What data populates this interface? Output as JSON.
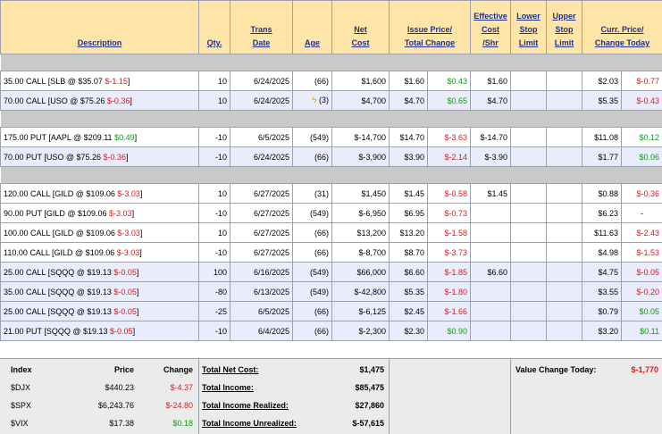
{
  "headers": {
    "description": "Description",
    "qty": "Qty.",
    "trans_date_1": "Trans",
    "trans_date_2": "Date",
    "age": "Age",
    "net_cost_1": "Net",
    "net_cost_2": "Cost",
    "issue_1": "Issue Price/",
    "issue_2": "Total Change",
    "eff_1": "Effective",
    "eff_2": "Cost",
    "eff_3": "/Shr",
    "lower_1": "Lower",
    "lower_2": "Stop",
    "lower_3": "Limit",
    "upper_1": "Upper",
    "upper_2": "Stop",
    "upper_3": "Limit",
    "curr_1": "Curr. Price/",
    "curr_2": "Change Today"
  },
  "rows": [
    {
      "desc": "35.00 CALL [SLB @ $35.07 ",
      "desc_chg": "$-1.15",
      "desc_tail": "]",
      "qty": "10",
      "date": "6/24/2025",
      "age": "(66)",
      "net": "$1,600",
      "issue": "$1.60",
      "total": "$0.43",
      "total_color": "grn",
      "eff": "$1.60",
      "curr": "$2.03",
      "chg": "$-0.77",
      "chg_color": "red"
    },
    {
      "desc": "70.00 CALL [USO @ $75.26 ",
      "desc_chg": "$-0.36",
      "desc_tail": "]",
      "qty": "10",
      "date": "6/24/2025",
      "age": "(3)",
      "flame": "ϟ",
      "net": "$4,700",
      "issue": "$4.70",
      "total": "$0.65",
      "total_color": "grn",
      "eff": "$4.70",
      "curr": "$5.35",
      "chg": "$-0.43",
      "chg_color": "red"
    },
    {
      "desc": "175.00 PUT [AAPL @ $209.11 ",
      "desc_chg": "$0.49",
      "desc_tail": "]",
      "desc_color": "grn",
      "qty": "-10",
      "date": "6/5/2025",
      "age": "(549)",
      "net": "$-14,700",
      "issue": "$14.70",
      "total": "$-3.63",
      "total_color": "red",
      "eff": "$-14.70",
      "curr": "$11.08",
      "chg": "$0.12",
      "chg_color": "grn"
    },
    {
      "desc": "70.00 PUT [USO @ $75.26 ",
      "desc_chg": "$-0.36",
      "desc_tail": "]",
      "qty": "-10",
      "date": "6/24/2025",
      "age": "(66)",
      "net": "$-3,900",
      "issue": "$3.90",
      "total": "$-2.14",
      "total_color": "red",
      "eff": "$-3.90",
      "curr": "$1.77",
      "chg": "$0.06",
      "chg_color": "grn"
    },
    {
      "desc": "120.00 CALL [GILD @ $109.06 ",
      "desc_chg": "$-3.03",
      "desc_tail": "]",
      "qty": "10",
      "date": "6/27/2025",
      "age": "(31)",
      "net": "$1,450",
      "issue": "$1.45",
      "total": "$-0.58",
      "total_color": "red",
      "eff": "$1.45",
      "curr": "$0.88",
      "chg": "$-0.36",
      "chg_color": "red"
    },
    {
      "desc": "90.00 PUT [GILD @ $109.06 ",
      "desc_chg": "$-3.03",
      "desc_tail": "]",
      "qty": "-10",
      "date": "6/27/2025",
      "age": "(549)",
      "net": "$-6,950",
      "issue": "$6.95",
      "total": "$-0.73",
      "total_color": "red",
      "eff": "",
      "curr": "$6.23",
      "chg": "-",
      "chg_color": ""
    },
    {
      "desc": "100.00 CALL [GILD @ $109.06 ",
      "desc_chg": "$-3.03",
      "desc_tail": "]",
      "qty": "10",
      "date": "6/27/2025",
      "age": "(66)",
      "net": "$13,200",
      "issue": "$13.20",
      "total": "$-1.58",
      "total_color": "red",
      "eff": "",
      "curr": "$11.63",
      "chg": "$-2.43",
      "chg_color": "red"
    },
    {
      "desc": "110.00 CALL [GILD @ $109.06 ",
      "desc_chg": "$-3.03",
      "desc_tail": "]",
      "qty": "-10",
      "date": "6/27/2025",
      "age": "(66)",
      "net": "$-8,700",
      "issue": "$8.70",
      "total": "$-3.73",
      "total_color": "red",
      "eff": "",
      "curr": "$4.98",
      "chg": "$-1.53",
      "chg_color": "red"
    },
    {
      "desc": "25.00 CALL [SQQQ @ $19.13 ",
      "desc_chg": "$-0.05",
      "desc_tail": "]",
      "qty": "100",
      "date": "6/16/2025",
      "age": "(549)",
      "net": "$66,000",
      "issue": "$6.60",
      "total": "$-1.85",
      "total_color": "red",
      "eff": "$6.60",
      "curr": "$4.75",
      "chg": "$-0.05",
      "chg_color": "red"
    },
    {
      "desc": "35.00 CALL [SQQQ @ $19.13 ",
      "desc_chg": "$-0.05",
      "desc_tail": "]",
      "qty": "-80",
      "date": "6/13/2025",
      "age": "(549)",
      "net": "$-42,800",
      "issue": "$5.35",
      "total": "$-1.80",
      "total_color": "red",
      "eff": "",
      "curr": "$3.55",
      "chg": "$-0.20",
      "chg_color": "red"
    },
    {
      "desc": "25.00 CALL [SQQQ @ $19.13 ",
      "desc_chg": "$-0.05",
      "desc_tail": "]",
      "qty": "-25",
      "date": "6/5/2025",
      "age": "(66)",
      "net": "$-6,125",
      "issue": "$2.45",
      "total": "$-1.66",
      "total_color": "red",
      "eff": "",
      "curr": "$0.79",
      "chg": "$0.05",
      "chg_color": "grn"
    },
    {
      "desc": "21.00 PUT [SQQQ @ $19.13 ",
      "desc_chg": "$-0.05",
      "desc_tail": "]",
      "qty": "-10",
      "date": "6/4/2025",
      "age": "(66)",
      "net": "$-2,300",
      "issue": "$2.30",
      "total": "$0.90",
      "total_color": "grn",
      "eff": "",
      "curr": "$3.20",
      "chg": "$0.11",
      "chg_color": "grn"
    }
  ],
  "index_table": {
    "h_index": "Index",
    "h_price": "Price",
    "h_change": "Change",
    "rows": [
      {
        "name": "$DJX",
        "price": "$440.23",
        "change": "$-4.37",
        "color": "red"
      },
      {
        "name": "$SPX",
        "price": "$6,243.76",
        "change": "$-24.80",
        "color": "red"
      },
      {
        "name": "$VIX",
        "price": "$17.38",
        "change": "$0.18",
        "color": "grn"
      }
    ]
  },
  "totals": {
    "net_cost_label": "Total Net Cost:",
    "net_cost": "$1,475",
    "income_label": "Total Income:",
    "income": "$85,475",
    "realized_label": "Total Income Realized:",
    "realized": "$27,860",
    "unrealized_label": "Total Income Unrealized:",
    "unrealized": "$-57,615"
  },
  "value_change": {
    "label": "Value Change Today:",
    "value": "$-1,770"
  }
}
